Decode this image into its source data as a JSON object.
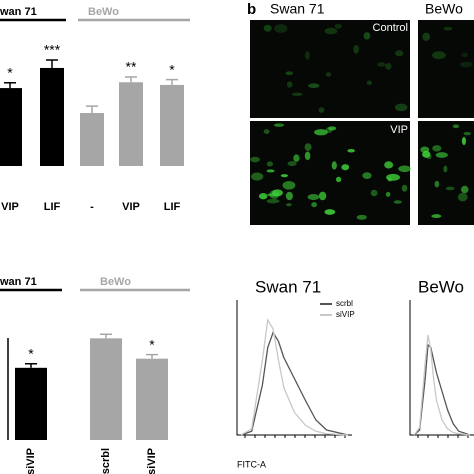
{
  "panel_b": {
    "letter": "b",
    "columns": [
      "Swan 71",
      "BeWo"
    ],
    "rows": [
      "Control",
      "VIP"
    ]
  },
  "chart_data": [
    {
      "type": "bar",
      "groups": [
        "wan 71",
        "BeWo"
      ],
      "group_colors": [
        "#000000",
        "#a6a6a6"
      ],
      "categories": [
        "VIP",
        "LIF",
        "-",
        "VIP",
        "LIF"
      ],
      "values": [
        1.47,
        1.85,
        1.0,
        1.58,
        1.53
      ],
      "errors": [
        0.1,
        0.15,
        0.13,
        0.1,
        0.1
      ],
      "colors": [
        "#000000",
        "#000000",
        "#a6a6a6",
        "#a6a6a6",
        "#a6a6a6"
      ],
      "significance": [
        "*",
        "***",
        null,
        "**",
        "*"
      ],
      "ylim": [
        0,
        2
      ]
    },
    {
      "type": "bar",
      "groups": [
        "wan 71",
        "BeWo"
      ],
      "group_colors": [
        "#000000",
        "#a6a6a6"
      ],
      "categories": [
        "siVIP",
        "scrbl",
        "siVIP"
      ],
      "values": [
        0.71,
        1.0,
        0.8
      ],
      "errors": [
        0.04,
        0.04,
        0.04
      ],
      "colors": [
        "#000000",
        "#a6a6a6",
        "#a6a6a6"
      ],
      "significance": [
        "*",
        null,
        "*"
      ],
      "ylim": [
        0,
        1.2
      ]
    },
    {
      "type": "line",
      "title": "Swan 71",
      "xlabel": "FITC-A",
      "x": [
        0,
        10,
        20,
        25,
        30,
        35,
        40,
        50,
        60,
        70,
        80,
        100
      ],
      "series": [
        {
          "name": "scrbl",
          "color": "#555555",
          "values": [
            0,
            3,
            40,
            70,
            82,
            75,
            62,
            45,
            28,
            12,
            4,
            0
          ]
        },
        {
          "name": "siVIP",
          "color": "#c8c8c8",
          "values": [
            0,
            5,
            60,
            92,
            85,
            60,
            38,
            18,
            8,
            3,
            1,
            0
          ]
        }
      ],
      "xlim": [
        0,
        100
      ],
      "ylim": [
        0,
        100
      ]
    },
    {
      "type": "line",
      "title": "BeWo",
      "x": [
        0,
        10,
        20,
        25,
        30,
        35,
        40,
        50,
        60,
        70,
        80,
        100
      ],
      "series": [
        {
          "name": "scrbl",
          "color": "#555555",
          "values": [
            0,
            4,
            45,
            72,
            70,
            60,
            50,
            35,
            20,
            9,
            3,
            0
          ]
        },
        {
          "name": "siVIP",
          "color": "#c8c8c8",
          "values": [
            0,
            6,
            58,
            80,
            68,
            45,
            28,
            12,
            5,
            2,
            1,
            0
          ]
        }
      ],
      "xlim": [
        0,
        100
      ],
      "ylim": [
        0,
        100
      ]
    }
  ]
}
